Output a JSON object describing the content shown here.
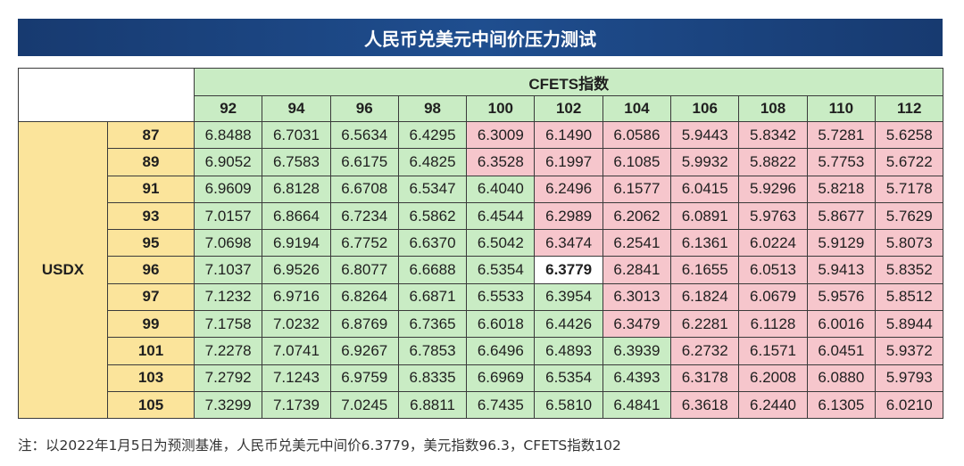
{
  "title": "人民币兑美元中间价压力测试",
  "cfets_label": "CFETS指数",
  "usdx_label": "USDX",
  "note": "注：以2022年1月5日为预测基准，人民币兑美元中间价6.3779，美元指数96.3，CFETS指数102",
  "colors": {
    "title_bg": "#1f4e8f",
    "green": "#c9ecc4",
    "red": "#f6c6cc",
    "yellow": "#fbe49b"
  },
  "chart_data": {
    "type": "table",
    "title": "人民币兑美元中间价压力测试",
    "column_header": "CFETS指数",
    "row_header": "USDX",
    "columns": [
      "92",
      "94",
      "96",
      "98",
      "100",
      "102",
      "104",
      "106",
      "108",
      "110",
      "112"
    ],
    "rows": [
      {
        "usdx": "87",
        "values": [
          "6.8488",
          "6.7031",
          "6.5634",
          "6.4295",
          "6.3009",
          "6.1490",
          "6.0586",
          "5.9443",
          "5.8342",
          "5.7281",
          "5.6258"
        ],
        "colors": [
          "g",
          "g",
          "g",
          "g",
          "r",
          "r",
          "r",
          "r",
          "r",
          "r",
          "r"
        ]
      },
      {
        "usdx": "89",
        "values": [
          "6.9052",
          "6.7583",
          "6.6175",
          "6.4825",
          "6.3528",
          "6.1997",
          "6.1085",
          "5.9932",
          "5.8822",
          "5.7753",
          "5.6722"
        ],
        "colors": [
          "g",
          "g",
          "g",
          "g",
          "r",
          "r",
          "r",
          "r",
          "r",
          "r",
          "r"
        ]
      },
      {
        "usdx": "91",
        "values": [
          "6.9609",
          "6.8128",
          "6.6708",
          "6.5347",
          "6.4040",
          "6.2496",
          "6.1577",
          "6.0415",
          "5.9296",
          "5.8218",
          "5.7178"
        ],
        "colors": [
          "g",
          "g",
          "g",
          "g",
          "g",
          "r",
          "r",
          "r",
          "r",
          "r",
          "r"
        ]
      },
      {
        "usdx": "93",
        "values": [
          "7.0157",
          "6.8664",
          "6.7234",
          "6.5862",
          "6.4544",
          "6.2989",
          "6.2062",
          "6.0891",
          "5.9763",
          "5.8677",
          "5.7629"
        ],
        "colors": [
          "g",
          "g",
          "g",
          "g",
          "g",
          "r",
          "r",
          "r",
          "r",
          "r",
          "r"
        ]
      },
      {
        "usdx": "95",
        "values": [
          "7.0698",
          "6.9194",
          "6.7752",
          "6.6370",
          "6.5042",
          "6.3474",
          "6.2541",
          "6.1361",
          "6.0224",
          "5.9129",
          "5.8073"
        ],
        "colors": [
          "g",
          "g",
          "g",
          "g",
          "g",
          "r",
          "r",
          "r",
          "r",
          "r",
          "r"
        ]
      },
      {
        "usdx": "96",
        "values": [
          "7.1037",
          "6.9526",
          "6.8077",
          "6.6688",
          "6.5354",
          "6.3779",
          "6.2841",
          "6.1655",
          "6.0513",
          "5.9413",
          "5.8352"
        ],
        "colors": [
          "g",
          "g",
          "g",
          "g",
          "g",
          "hl",
          "r",
          "r",
          "r",
          "r",
          "r"
        ]
      },
      {
        "usdx": "97",
        "values": [
          "7.1232",
          "6.9716",
          "6.8264",
          "6.6871",
          "6.5533",
          "6.3954",
          "6.3013",
          "6.1824",
          "6.0679",
          "5.9576",
          "5.8512"
        ],
        "colors": [
          "g",
          "g",
          "g",
          "g",
          "g",
          "g",
          "r",
          "r",
          "r",
          "r",
          "r"
        ]
      },
      {
        "usdx": "99",
        "values": [
          "7.1758",
          "7.0232",
          "6.8769",
          "6.7365",
          "6.6018",
          "6.4426",
          "6.3479",
          "6.2281",
          "6.1128",
          "6.0016",
          "5.8944"
        ],
        "colors": [
          "g",
          "g",
          "g",
          "g",
          "g",
          "g",
          "r",
          "r",
          "r",
          "r",
          "r"
        ]
      },
      {
        "usdx": "101",
        "values": [
          "7.2278",
          "7.0741",
          "6.9267",
          "6.7853",
          "6.6496",
          "6.4893",
          "6.3939",
          "6.2732",
          "6.1571",
          "6.0451",
          "5.9372"
        ],
        "colors": [
          "g",
          "g",
          "g",
          "g",
          "g",
          "g",
          "g",
          "r",
          "r",
          "r",
          "r"
        ]
      },
      {
        "usdx": "103",
        "values": [
          "7.2792",
          "7.1243",
          "6.9759",
          "6.8335",
          "6.6969",
          "6.5354",
          "6.4393",
          "6.3178",
          "6.2008",
          "6.0880",
          "5.9793"
        ],
        "colors": [
          "g",
          "g",
          "g",
          "g",
          "g",
          "g",
          "g",
          "r",
          "r",
          "r",
          "r"
        ]
      },
      {
        "usdx": "105",
        "values": [
          "7.3299",
          "7.1739",
          "7.0245",
          "6.8811",
          "6.7435",
          "6.5810",
          "6.4841",
          "6.3618",
          "6.2440",
          "6.1305",
          "6.0210"
        ],
        "colors": [
          "g",
          "g",
          "g",
          "g",
          "g",
          "g",
          "g",
          "r",
          "r",
          "r",
          "r"
        ]
      }
    ]
  }
}
